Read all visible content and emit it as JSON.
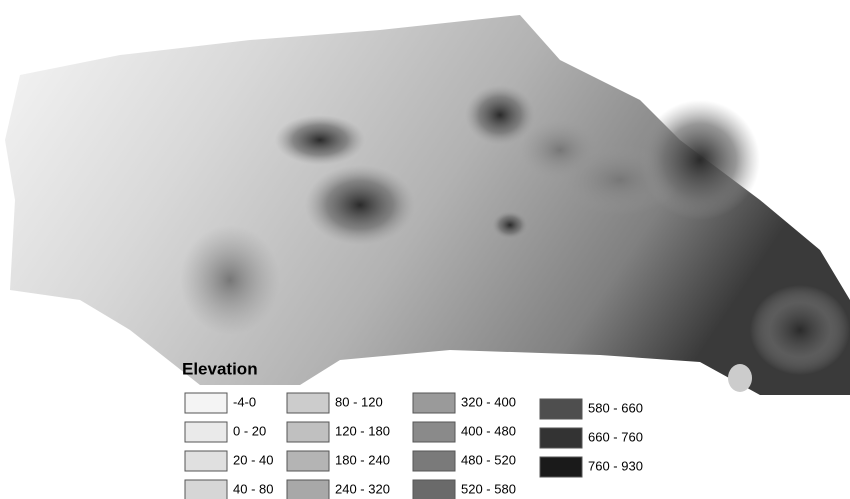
{
  "legend": {
    "title": "Elevation",
    "items": [
      {
        "label": "-4-0",
        "color": "#f4f4f4"
      },
      {
        "label": "0 - 20",
        "color": "#eaeaea"
      },
      {
        "label": "20 - 40",
        "color": "#e0e0e0"
      },
      {
        "label": "40 - 80",
        "color": "#d6d6d6"
      },
      {
        "label": "80 - 120",
        "color": "#cccccc"
      },
      {
        "label": "120 - 180",
        "color": "#c0c0c0"
      },
      {
        "label": "180 - 240",
        "color": "#b4b4b4"
      },
      {
        "label": "240 - 320",
        "color": "#a8a8a8"
      },
      {
        "label": "320 - 400",
        "color": "#9a9a9a"
      },
      {
        "label": "400 - 480",
        "color": "#8a8a8a"
      },
      {
        "label": "480 - 520",
        "color": "#7a7a7a"
      },
      {
        "label": "520 - 580",
        "color": "#6a6a6a"
      },
      {
        "label": "580 - 660",
        "color": "#4e4e4e"
      },
      {
        "label": "660 - 760",
        "color": "#333333"
      },
      {
        "label": "760 - 930",
        "color": "#1a1a1a"
      }
    ]
  }
}
